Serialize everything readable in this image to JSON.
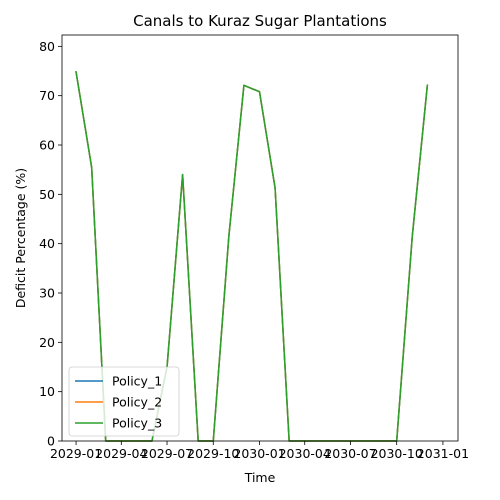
{
  "chart_data": {
    "type": "line",
    "title": "Canals to Kuraz Sugar Plantations",
    "xlabel": "Time",
    "ylabel": "Deficit Percentage (%)",
    "ylim": [
      0,
      82.3
    ],
    "xlim": [
      "2028-12-04",
      "2031-01-31"
    ],
    "grid": false,
    "legend_position": "lower-left",
    "x_ticks": [
      "2029-01",
      "2029-04",
      "2029-07",
      "2029-10",
      "2030-01",
      "2030-04",
      "2030-07",
      "2030-10",
      "2031-01"
    ],
    "y_ticks": [
      0,
      10,
      20,
      30,
      40,
      50,
      60,
      70,
      80
    ],
    "x": [
      "2029-01-01",
      "2029-02-01",
      "2029-03-01",
      "2029-04-01",
      "2029-05-01",
      "2029-06-01",
      "2029-07-01",
      "2029-08-01",
      "2029-09-01",
      "2029-10-01",
      "2029-11-01",
      "2029-12-01",
      "2030-01-01",
      "2030-02-01",
      "2030-03-01",
      "2030-04-01",
      "2030-05-01",
      "2030-06-01",
      "2030-07-01",
      "2030-08-01",
      "2030-09-01",
      "2030-10-01",
      "2030-11-01",
      "2030-12-01"
    ],
    "series": [
      {
        "name": "Policy_1",
        "color": "#1f77b4",
        "values": [
          74.8,
          55.5,
          0,
          0,
          0,
          0,
          15,
          54,
          0,
          0,
          41.5,
          72.1,
          70.8,
          51.3,
          0,
          0,
          0,
          0,
          0,
          0,
          0,
          0,
          41.5,
          72.1
        ]
      },
      {
        "name": " Policy_2",
        "color": "#ff7f0e",
        "values": [
          74.8,
          55.5,
          0,
          0,
          0,
          0,
          15,
          54,
          0,
          0,
          41.5,
          72.1,
          70.8,
          51.3,
          0,
          0,
          0,
          0,
          0,
          0,
          0,
          0,
          41.5,
          72.1
        ]
      },
      {
        "name": " Policy_3",
        "color": "#2ca02c",
        "values": [
          74.8,
          55.5,
          0,
          0,
          0,
          0,
          15,
          54,
          0,
          0,
          41.5,
          72.1,
          70.8,
          51.3,
          0,
          0,
          0,
          0,
          0,
          0,
          0,
          0,
          41.5,
          72.1
        ]
      }
    ]
  }
}
